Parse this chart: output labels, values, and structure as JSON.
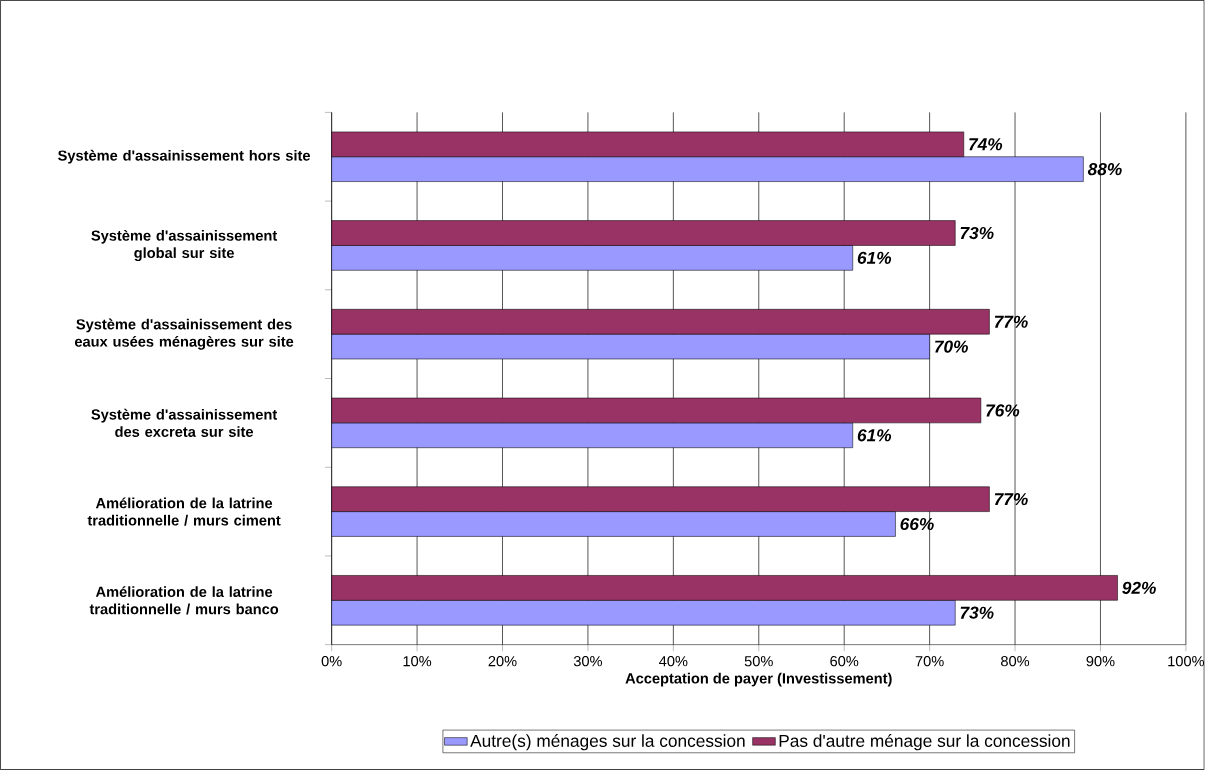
{
  "chart_data": {
    "type": "bar",
    "orientation": "horizontal",
    "categories": [
      "Système d'assainissement hors site",
      "Système d'assainissement global sur site",
      "Système d'assainissement des eaux usées ménagères sur site",
      "Système d'assainissement des excreta sur site",
      "Amélioration de la latrine traditionnelle / murs ciment",
      "Amélioration de la latrine traditionnelle / murs banco"
    ],
    "series": [
      {
        "name": "Autre(s) ménages sur la concession",
        "color": "#9999ff",
        "values": [
          88,
          61,
          70,
          61,
          66,
          73
        ],
        "value_labels": [
          "88%",
          "61%",
          "70%",
          "61%",
          "66%",
          "73%"
        ]
      },
      {
        "name": "Pas d'autre ménage sur la concession",
        "color": "#993366",
        "values": [
          74,
          73,
          77,
          76,
          77,
          92
        ],
        "value_labels": [
          "74%",
          "73%",
          "77%",
          "76%",
          "77%",
          "92%"
        ]
      }
    ],
    "xlabel": "Acceptation de payer (Investissement)",
    "xlim": [
      0,
      100
    ],
    "xticks": [
      {
        "value": 0,
        "label": "0%"
      },
      {
        "value": 10,
        "label": "10%"
      },
      {
        "value": 20,
        "label": "20%"
      },
      {
        "value": 30,
        "label": "30%"
      },
      {
        "value": 40,
        "label": "40%"
      },
      {
        "value": 50,
        "label": "50%"
      },
      {
        "value": 60,
        "label": "60%"
      },
      {
        "value": 70,
        "label": "70%"
      },
      {
        "value": 80,
        "label": "80%"
      },
      {
        "value": 90,
        "label": "90%"
      },
      {
        "value": 100,
        "label": "100%"
      }
    ],
    "grid": "x",
    "legend": "bottom"
  }
}
